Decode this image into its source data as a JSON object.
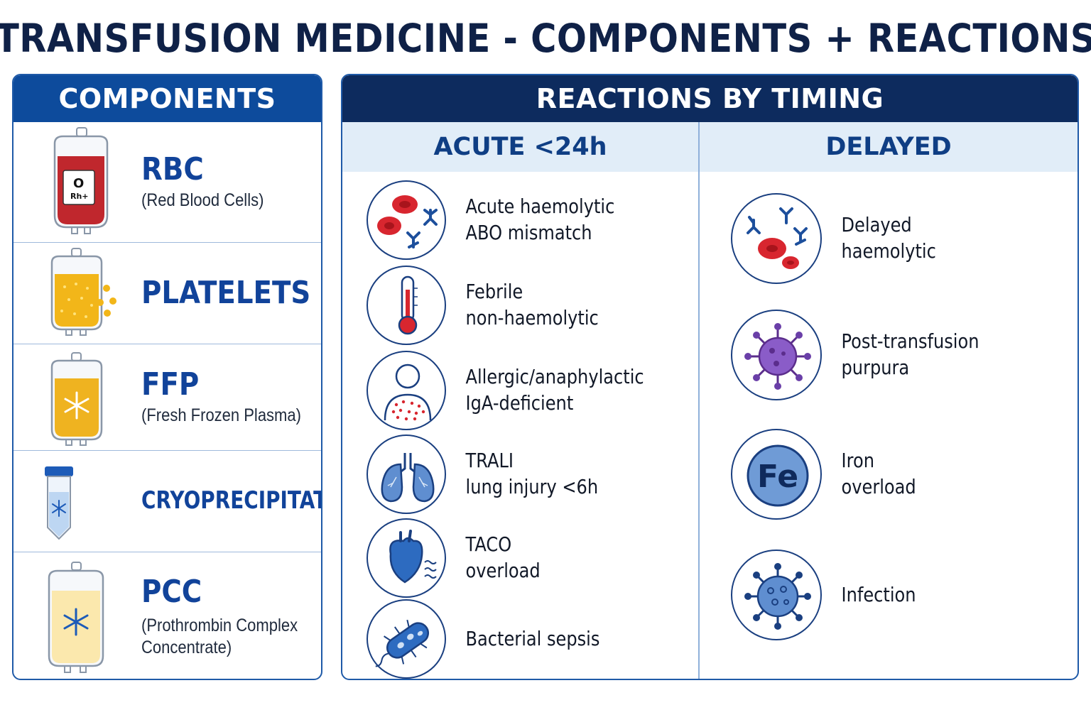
{
  "title": "TRANSFUSION MEDICINE - COMPONENTS + REACTIONS",
  "components": {
    "header": "COMPONENTS",
    "items": [
      {
        "name": "RBC",
        "sub": "(Red Blood Cells)",
        "icon": "red-blood-bag-icon",
        "bag_label": "O",
        "bag_sublabel": "Rh+"
      },
      {
        "name": "PLATELETS",
        "icon": "platelet-bag-icon"
      },
      {
        "name": "FFP",
        "sub": "(Fresh Frozen Plasma)",
        "icon": "frozen-plasma-bag-icon"
      },
      {
        "name": "CRYOPRECIPITATE",
        "icon": "cryo-tube-icon"
      },
      {
        "name": "PCC",
        "sub_line1": "(Prothrombin Complex",
        "sub_line2": "Concentrate)",
        "icon": "pcc-bag-icon"
      }
    ]
  },
  "reactions": {
    "header": "REACTIONS BY TIMING",
    "acute": {
      "header": "ACUTE <24h",
      "items": [
        {
          "line1": "Acute haemolytic",
          "line2": "ABO mismatch",
          "icon": "red-cells-antibody-icon"
        },
        {
          "line1": "Febrile",
          "line2": "non-haemolytic",
          "icon": "thermometer-icon"
        },
        {
          "line1": "Allergic/anaphylactic",
          "line2": "IgA-deficient",
          "icon": "rash-person-icon"
        },
        {
          "line1": "TRALI",
          "line2": "lung injury <6h",
          "icon": "lungs-icon"
        },
        {
          "line1": "TACO",
          "line2": "overload",
          "icon": "heart-icon"
        },
        {
          "line1": "Bacterial sepsis",
          "line2": "",
          "icon": "bacterium-icon"
        }
      ]
    },
    "delayed": {
      "header": "DELAYED",
      "items": [
        {
          "line1": "Delayed",
          "line2": "haemolytic",
          "icon": "red-cells-antibody-icon"
        },
        {
          "line1": "Post-transfusion",
          "line2": "purpura",
          "icon": "purple-virus-icon"
        },
        {
          "line1": "Iron",
          "line2": "overload",
          "icon": "iron-icon",
          "symbol": "Fe"
        },
        {
          "line1": "Infection",
          "line2": "",
          "icon": "virus-icon"
        }
      ]
    }
  },
  "colors": {
    "title": "#0f2147",
    "components_header": "#0d4b9c",
    "reactions_header": "#0d2b5e",
    "column_header_bg": "#e1edf8",
    "accent_blue": "#11439a",
    "rbc_red": "#c0272d",
    "platelet_yellow": "#f2b619"
  }
}
